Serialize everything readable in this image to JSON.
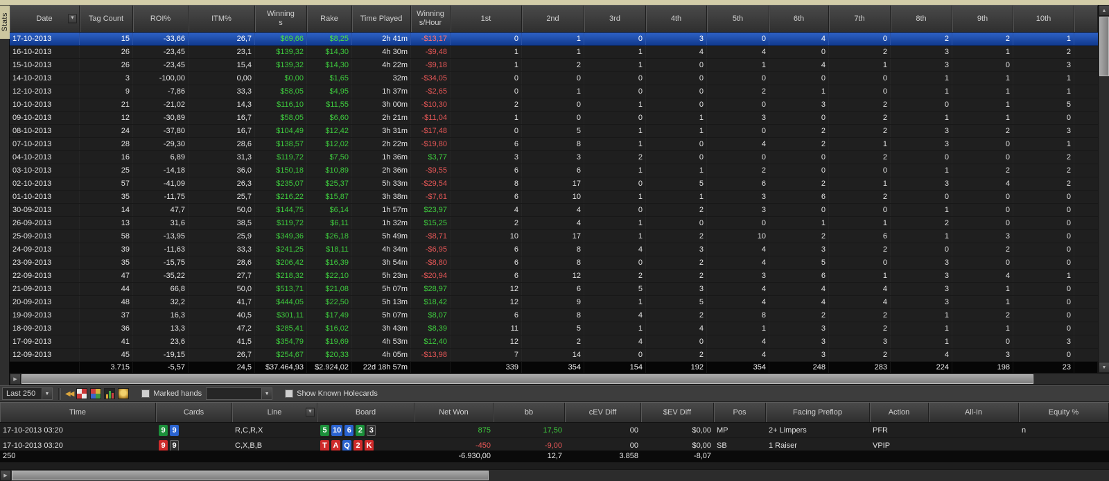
{
  "window": {
    "stats_tab": "Stats"
  },
  "colors": {
    "positive": "#3ecc3e",
    "negative": "#e35656",
    "selection_blue": "#1b4fae",
    "tab_tan": "#ccc6a0"
  },
  "top_table": {
    "columns": [
      "Date",
      "Tag Count",
      "ROI%",
      "ITM%",
      "Winning\ns",
      "Rake",
      "Time Played",
      "Winning\ns/Hour",
      "1st",
      "2nd",
      "3rd",
      "4th",
      "5th",
      "6th",
      "7th",
      "8th",
      "9th",
      "10th"
    ],
    "rows": [
      [
        "17-10-2013",
        "15",
        "-33,66",
        "26,7",
        "$69,66",
        "$8,25",
        "2h 41m",
        "-$13,17",
        "0",
        "1",
        "0",
        "3",
        "0",
        "4",
        "0",
        "2",
        "2",
        "1"
      ],
      [
        "16-10-2013",
        "26",
        "-23,45",
        "23,1",
        "$139,32",
        "$14,30",
        "4h 30m",
        "-$9,48",
        "1",
        "1",
        "1",
        "4",
        "4",
        "0",
        "2",
        "3",
        "1",
        "2"
      ],
      [
        "15-10-2013",
        "26",
        "-23,45",
        "15,4",
        "$139,32",
        "$14,30",
        "4h 22m",
        "-$9,18",
        "1",
        "2",
        "1",
        "0",
        "1",
        "4",
        "1",
        "3",
        "0",
        "3"
      ],
      [
        "14-10-2013",
        "3",
        "-100,00",
        "0,00",
        "$0,00",
        "$1,65",
        "32m",
        "-$34,05",
        "0",
        "0",
        "0",
        "0",
        "0",
        "0",
        "0",
        "1",
        "1",
        "1"
      ],
      [
        "12-10-2013",
        "9",
        "-7,86",
        "33,3",
        "$58,05",
        "$4,95",
        "1h 37m",
        "-$2,65",
        "0",
        "1",
        "0",
        "0",
        "2",
        "1",
        "0",
        "1",
        "1",
        "1"
      ],
      [
        "10-10-2013",
        "21",
        "-21,02",
        "14,3",
        "$116,10",
        "$11,55",
        "3h 00m",
        "-$10,30",
        "2",
        "0",
        "1",
        "0",
        "0",
        "3",
        "2",
        "0",
        "1",
        "5"
      ],
      [
        "09-10-2013",
        "12",
        "-30,89",
        "16,7",
        "$58,05",
        "$6,60",
        "2h 21m",
        "-$11,04",
        "1",
        "0",
        "0",
        "1",
        "3",
        "0",
        "2",
        "1",
        "1",
        "0"
      ],
      [
        "08-10-2013",
        "24",
        "-37,80",
        "16,7",
        "$104,49",
        "$12,42",
        "3h 31m",
        "-$17,48",
        "0",
        "5",
        "1",
        "1",
        "0",
        "2",
        "2",
        "3",
        "2",
        "3"
      ],
      [
        "07-10-2013",
        "28",
        "-29,30",
        "28,6",
        "$138,57",
        "$12,02",
        "2h 22m",
        "-$19,80",
        "6",
        "8",
        "1",
        "0",
        "4",
        "2",
        "1",
        "3",
        "0",
        "1"
      ],
      [
        "04-10-2013",
        "16",
        "6,89",
        "31,3",
        "$119,72",
        "$7,50",
        "1h 36m",
        "$3,77",
        "3",
        "3",
        "2",
        "0",
        "0",
        "0",
        "2",
        "0",
        "0",
        "2"
      ],
      [
        "03-10-2013",
        "25",
        "-14,18",
        "36,0",
        "$150,18",
        "$10,89",
        "2h 36m",
        "-$9,55",
        "6",
        "6",
        "1",
        "1",
        "2",
        "0",
        "0",
        "1",
        "2",
        "2"
      ],
      [
        "02-10-2013",
        "57",
        "-41,09",
        "26,3",
        "$235,07",
        "$25,37",
        "5h 33m",
        "-$29,54",
        "8",
        "17",
        "0",
        "5",
        "6",
        "2",
        "1",
        "3",
        "4",
        "2"
      ],
      [
        "01-10-2013",
        "35",
        "-11,75",
        "25,7",
        "$216,22",
        "$15,87",
        "3h 38m",
        "-$7,61",
        "6",
        "10",
        "1",
        "1",
        "3",
        "6",
        "2",
        "0",
        "0",
        "0"
      ],
      [
        "30-09-2013",
        "14",
        "47,7",
        "50,0",
        "$144,75",
        "$6,14",
        "1h 57m",
        "$23,97",
        "4",
        "4",
        "0",
        "2",
        "3",
        "0",
        "0",
        "1",
        "0",
        "0"
      ],
      [
        "26-09-2013",
        "13",
        "31,6",
        "38,5",
        "$119,72",
        "$6,11",
        "1h 32m",
        "$15,25",
        "2",
        "4",
        "1",
        "0",
        "0",
        "1",
        "1",
        "2",
        "0",
        "0"
      ],
      [
        "25-09-2013",
        "58",
        "-13,95",
        "25,9",
        "$349,36",
        "$26,18",
        "5h 49m",
        "-$8,71",
        "10",
        "17",
        "1",
        "2",
        "10",
        "2",
        "6",
        "1",
        "3",
        "0"
      ],
      [
        "24-09-2013",
        "39",
        "-11,63",
        "33,3",
        "$241,25",
        "$18,11",
        "4h 34m",
        "-$6,95",
        "6",
        "8",
        "4",
        "3",
        "4",
        "3",
        "2",
        "0",
        "2",
        "0"
      ],
      [
        "23-09-2013",
        "35",
        "-15,75",
        "28,6",
        "$206,42",
        "$16,39",
        "3h 54m",
        "-$8,80",
        "6",
        "8",
        "0",
        "2",
        "4",
        "5",
        "0",
        "3",
        "0",
        "0"
      ],
      [
        "22-09-2013",
        "47",
        "-35,22",
        "27,7",
        "$218,32",
        "$22,10",
        "5h 23m",
        "-$20,94",
        "6",
        "12",
        "2",
        "2",
        "3",
        "6",
        "1",
        "3",
        "4",
        "1"
      ],
      [
        "21-09-2013",
        "44",
        "66,8",
        "50,0",
        "$513,71",
        "$21,08",
        "5h 07m",
        "$28,97",
        "12",
        "6",
        "5",
        "3",
        "4",
        "4",
        "4",
        "3",
        "1",
        "0"
      ],
      [
        "20-09-2013",
        "48",
        "32,2",
        "41,7",
        "$444,05",
        "$22,50",
        "5h 13m",
        "$18,42",
        "12",
        "9",
        "1",
        "5",
        "4",
        "4",
        "4",
        "3",
        "1",
        "0"
      ],
      [
        "19-09-2013",
        "37",
        "16,3",
        "40,5",
        "$301,11",
        "$17,49",
        "5h 07m",
        "$8,07",
        "6",
        "8",
        "4",
        "2",
        "8",
        "2",
        "2",
        "1",
        "2",
        "0"
      ],
      [
        "18-09-2013",
        "36",
        "13,3",
        "47,2",
        "$285,41",
        "$16,02",
        "3h 43m",
        "$8,39",
        "11",
        "5",
        "1",
        "4",
        "1",
        "3",
        "2",
        "1",
        "1",
        "0"
      ],
      [
        "17-09-2013",
        "41",
        "23,6",
        "41,5",
        "$354,79",
        "$19,69",
        "4h 53m",
        "$12,40",
        "12",
        "2",
        "4",
        "0",
        "4",
        "3",
        "3",
        "1",
        "0",
        "3"
      ],
      [
        "12-09-2013",
        "45",
        "-19,15",
        "26,7",
        "$254,67",
        "$20,33",
        "4h 05m",
        "-$13,98",
        "7",
        "14",
        "0",
        "2",
        "4",
        "3",
        "2",
        "4",
        "3",
        "0"
      ]
    ],
    "summary": [
      "",
      "3.715",
      "-5,57",
      "24,5",
      "$37.464,93",
      "$2.924,02",
      "22d 18h 57m",
      "",
      "339",
      "354",
      "154",
      "192",
      "354",
      "248",
      "283",
      "224",
      "198",
      "23"
    ]
  },
  "toolbar": {
    "filter_value": "Last 250",
    "marked_hands_label": "Marked hands",
    "show_holecards_label": "Show Known Holecards"
  },
  "hands_table": {
    "columns": [
      "Time",
      "Cards",
      "Line",
      "Board",
      "Net Won",
      "bb",
      "cEV Diff",
      "$EV Diff",
      "Pos",
      "Facing Preflop",
      "Action",
      "All-In",
      "Equity %"
    ],
    "rows": [
      {
        "time": "17-10-2013 03:20",
        "cards": [
          {
            "rank": "9",
            "suit": "clubs"
          },
          {
            "rank": "9",
            "suit": "diamonds"
          }
        ],
        "line": "R,C,R,X",
        "board": [
          {
            "rank": "5",
            "suit": "clubs"
          },
          {
            "rank": "10",
            "suit": "diamonds"
          },
          {
            "rank": "6",
            "suit": "diamonds"
          },
          {
            "rank": "2",
            "suit": "clubs"
          },
          {
            "rank": "3",
            "suit": "spades"
          }
        ],
        "net_won": "875",
        "bb": "17,50",
        "cev_diff": "00",
        "sev_diff": "$0,00",
        "pos": "MP",
        "facing_preflop": "2+ Limpers",
        "action": "PFR",
        "all_in": "",
        "equity": "n"
      },
      {
        "time": "17-10-2013 03:20",
        "cards": [
          {
            "rank": "9",
            "suit": "hearts"
          },
          {
            "rank": "9",
            "suit": "spades"
          }
        ],
        "line": "C,X,B,B",
        "board": [
          {
            "rank": "T",
            "suit": "hearts"
          },
          {
            "rank": "A",
            "suit": "hearts"
          },
          {
            "rank": "Q",
            "suit": "diamonds"
          },
          {
            "rank": "2",
            "suit": "hearts"
          },
          {
            "rank": "K",
            "suit": "hearts"
          }
        ],
        "net_won": "-450",
        "bb": "-9,00",
        "cev_diff": "00",
        "sev_diff": "$0,00",
        "pos": "SB",
        "facing_preflop": "1 Raiser",
        "action": "VPIP",
        "all_in": "",
        "equity": ""
      }
    ],
    "summary": {
      "count": "250",
      "net_won": "-6.930,00",
      "bb": "12,7",
      "cev_diff": "3.858",
      "sev_diff": "-8,07"
    }
  }
}
